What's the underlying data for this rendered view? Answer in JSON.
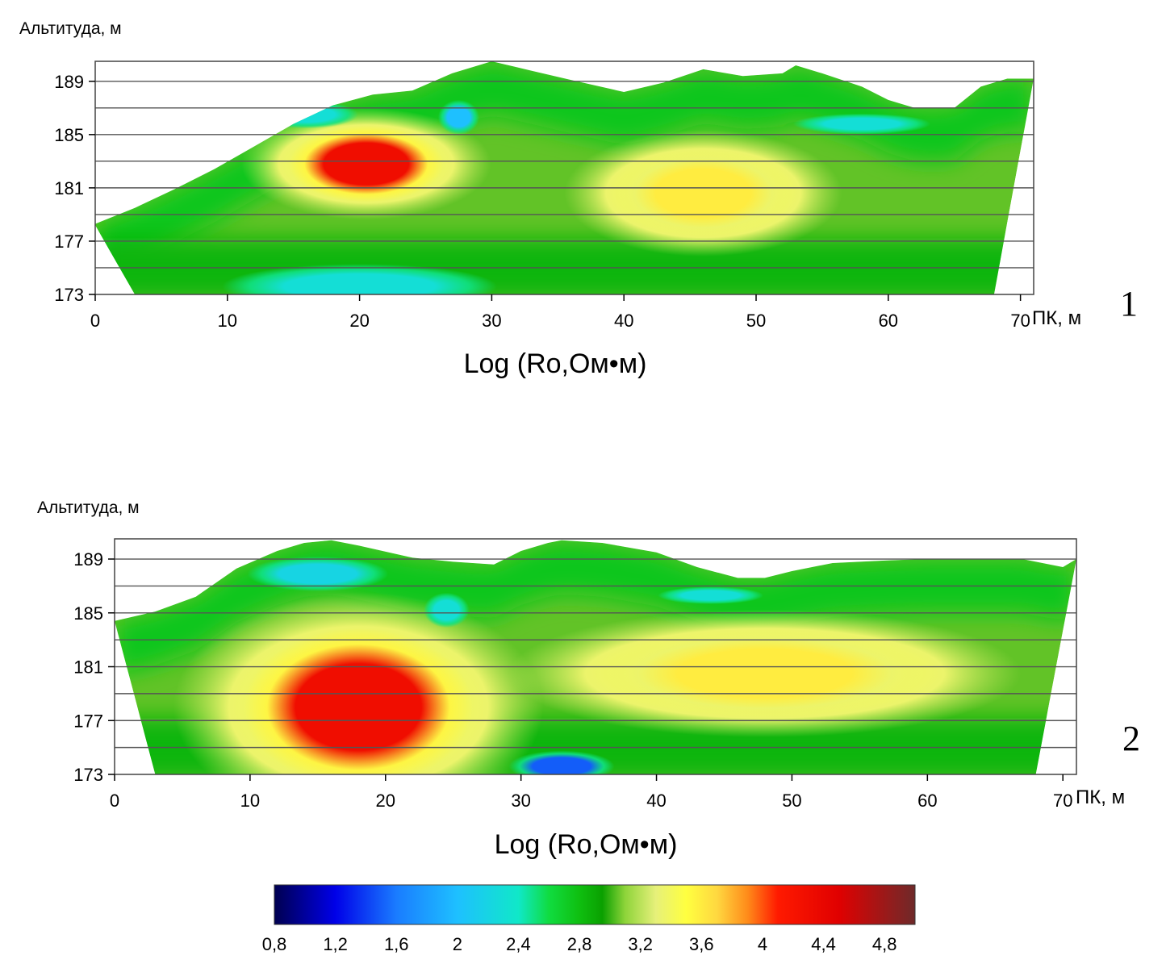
{
  "chart_data": [
    {
      "type": "heatmap",
      "panel_number": "1",
      "title": "Log (Ro,Ом•м)",
      "ylabel": "Альтитуда, м",
      "xlabel": "ПК, м",
      "xlim": [
        0,
        71
      ],
      "ylim": [
        173,
        190.5
      ],
      "xticks": [
        "0",
        "10",
        "20",
        "30",
        "40",
        "50",
        "60",
        "70"
      ],
      "yticks": [
        "173",
        "177",
        "181",
        "185",
        "189"
      ],
      "grid_y_values": [
        175,
        177,
        179,
        181,
        183,
        185,
        187,
        189
      ],
      "surface": [
        [
          0,
          178.3
        ],
        [
          3,
          179.5
        ],
        [
          6,
          180.9
        ],
        [
          9,
          182.4
        ],
        [
          12,
          184.1
        ],
        [
          15,
          185.8
        ],
        [
          18,
          187.2
        ],
        [
          21,
          188
        ],
        [
          24,
          188.3
        ],
        [
          27,
          189.6
        ],
        [
          30,
          190.5
        ],
        [
          33,
          189.8
        ],
        [
          36,
          189.1
        ],
        [
          40,
          188.2
        ],
        [
          43,
          188.9
        ],
        [
          46,
          189.9
        ],
        [
          49,
          189.4
        ],
        [
          52,
          189.6
        ],
        [
          53,
          190.2
        ],
        [
          55,
          189.6
        ],
        [
          58,
          188.6
        ],
        [
          60,
          187.6
        ],
        [
          62,
          187
        ],
        [
          65,
          187
        ],
        [
          67,
          188.6
        ],
        [
          69,
          189.2
        ],
        [
          71,
          189.2
        ]
      ],
      "base": [
        [
          0,
          178.2
        ],
        [
          3,
          173
        ],
        [
          68,
          173
        ],
        [
          71,
          189.2
        ]
      ],
      "features": [
        {
          "kind": "high",
          "value": 4.3,
          "x": 20.5,
          "y": 182.8,
          "rx": 4.5,
          "ry": 2.2
        },
        {
          "kind": "moderate",
          "value": 3.6,
          "x": 46,
          "y": 180.6,
          "rx": 5,
          "ry": 2.5
        },
        {
          "kind": "low",
          "value": 2.3,
          "x": 20,
          "y": 173.6,
          "rx": 8,
          "ry": 1.3
        },
        {
          "kind": "low",
          "value": 2.0,
          "x": 27.5,
          "y": 186.3,
          "rx": 1.2,
          "ry": 1.0
        },
        {
          "kind": "low",
          "value": 2.3,
          "x": 16,
          "y": 186.5,
          "rx": 3,
          "ry": 0.8
        },
        {
          "kind": "low",
          "value": 2.3,
          "x": 58,
          "y": 185.8,
          "rx": 4,
          "ry": 0.6
        }
      ]
    },
    {
      "type": "heatmap",
      "panel_number": "2",
      "title": "Log (Ro,Ом•м)",
      "ylabel": "Альтитуда, м",
      "xlabel": "ПК, м",
      "xlim": [
        0,
        71
      ],
      "ylim": [
        173,
        190.5
      ],
      "xticks": [
        "0",
        "10",
        "20",
        "30",
        "40",
        "50",
        "60",
        "70"
      ],
      "yticks": [
        "173",
        "177",
        "181",
        "185",
        "189"
      ],
      "grid_y_values": [
        175,
        177,
        179,
        181,
        183,
        185,
        187,
        189
      ],
      "surface": [
        [
          0,
          184.4
        ],
        [
          3,
          185.1
        ],
        [
          6,
          186.2
        ],
        [
          9,
          188.3
        ],
        [
          12,
          189.6
        ],
        [
          14,
          190.2
        ],
        [
          16,
          190.4
        ],
        [
          18,
          190
        ],
        [
          22,
          189.1
        ],
        [
          25,
          188.8
        ],
        [
          28,
          188.6
        ],
        [
          30,
          189.6
        ],
        [
          32,
          190.2
        ],
        [
          33,
          190.4
        ],
        [
          36,
          190.2
        ],
        [
          40,
          189.5
        ],
        [
          43,
          188.4
        ],
        [
          46,
          187.6
        ],
        [
          48,
          187.6
        ],
        [
          50,
          188.1
        ],
        [
          53,
          188.7
        ],
        [
          57,
          188.9
        ],
        [
          60,
          189
        ],
        [
          64,
          189
        ],
        [
          67,
          189
        ],
        [
          70,
          188.4
        ],
        [
          71,
          189
        ]
      ],
      "base": [
        [
          0,
          184.4
        ],
        [
          3,
          173
        ],
        [
          68,
          173
        ],
        [
          71,
          189
        ]
      ],
      "features": [
        {
          "kind": "high",
          "value": 4.3,
          "x": 18,
          "y": 178,
          "rx": 6.5,
          "ry": 4.5
        },
        {
          "kind": "moderate",
          "value": 3.6,
          "x": 48,
          "y": 180.5,
          "rx": 9,
          "ry": 2.5
        },
        {
          "kind": "low",
          "value": 1.5,
          "x": 33,
          "y": 173.6,
          "rx": 3,
          "ry": 0.9
        },
        {
          "kind": "low",
          "value": 2.2,
          "x": 15,
          "y": 187.9,
          "rx": 4,
          "ry": 1.0
        },
        {
          "kind": "low",
          "value": 2.3,
          "x": 24.5,
          "y": 185.2,
          "rx": 1.3,
          "ry": 1.0
        },
        {
          "kind": "low",
          "value": 2.3,
          "x": 44,
          "y": 186.3,
          "rx": 3,
          "ry": 0.5
        }
      ]
    }
  ],
  "colorbar": {
    "range": [
      0.8,
      5.0
    ],
    "tick_values": [
      0.8,
      1.2,
      1.6,
      2.0,
      2.4,
      2.8,
      3.2,
      3.6,
      4.0,
      4.4,
      4.8
    ],
    "tick_labels": [
      "0,8",
      "1,2",
      "1,6",
      "2",
      "2,4",
      "2,8",
      "3,2",
      "3,6",
      "4",
      "4,4",
      "4,8"
    ],
    "stops": [
      [
        0.8,
        "#000050"
      ],
      [
        1.2,
        "#0000e8"
      ],
      [
        1.6,
        "#1a7cff"
      ],
      [
        2.0,
        "#1ec0ff"
      ],
      [
        2.4,
        "#10e8c8"
      ],
      [
        2.6,
        "#10dc40"
      ],
      [
        2.8,
        "#0fbf10"
      ],
      [
        2.95,
        "#0aa000"
      ],
      [
        3.1,
        "#8ed43a"
      ],
      [
        3.3,
        "#e6f07a"
      ],
      [
        3.5,
        "#ffff40"
      ],
      [
        3.7,
        "#ffd840"
      ],
      [
        3.9,
        "#ff8c1a"
      ],
      [
        4.1,
        "#ff1a00"
      ],
      [
        4.5,
        "#e00000"
      ],
      [
        5.0,
        "#6e2a2a"
      ]
    ]
  }
}
